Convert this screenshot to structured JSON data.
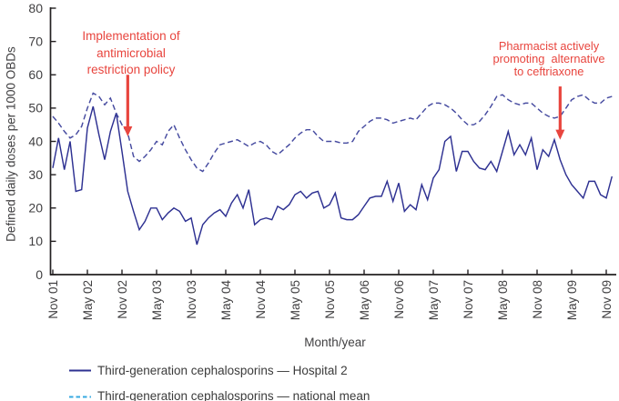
{
  "chart_data": {
    "type": "line",
    "title": "",
    "xlabel": "Month/year",
    "ylabel": "Defined daily doses per 1000 OBDs",
    "ylim": [
      0,
      80
    ],
    "y_ticks": [
      0,
      10,
      20,
      30,
      40,
      50,
      60,
      70,
      80
    ],
    "grid": "off",
    "legend_position": "bottom-left",
    "x_ticks": [
      {
        "label": "Nov 01",
        "month": 0
      },
      {
        "label": "May 02",
        "month": 6
      },
      {
        "label": "Nov 02",
        "month": 12
      },
      {
        "label": "May 03",
        "month": 18
      },
      {
        "label": "Nov 03",
        "month": 24
      },
      {
        "label": "May 04",
        "month": 30
      },
      {
        "label": "Nov 04",
        "month": 36
      },
      {
        "label": "May 05",
        "month": 42
      },
      {
        "label": "Nov 05",
        "month": 48
      },
      {
        "label": "May 06",
        "month": 54
      },
      {
        "label": "Nov 06",
        "month": 60
      },
      {
        "label": "May 07",
        "month": 66
      },
      {
        "label": "Nov 07",
        "month": 72
      },
      {
        "label": "May 08",
        "month": 78
      },
      {
        "label": "Nov 08",
        "month": 84
      },
      {
        "label": "May 09",
        "month": 90
      },
      {
        "label": "Nov 09",
        "month": 96
      }
    ],
    "x_months": [
      "Nov 01",
      "Dec 01",
      "Jan 02",
      "Feb 02",
      "Mar 02",
      "Apr 02",
      "May 02",
      "Jun 02",
      "Jul 02",
      "Aug 02",
      "Sep 02",
      "Oct 02",
      "Nov 02",
      "Dec 02",
      "Jan 03",
      "Feb 03",
      "Mar 03",
      "Apr 03",
      "May 03",
      "Jun 03",
      "Jul 03",
      "Aug 03",
      "Sep 03",
      "Oct 03",
      "Nov 03",
      "Dec 03",
      "Jan 04",
      "Feb 04",
      "Mar 04",
      "Apr 04",
      "May 04",
      "Jun 04",
      "Jul 04",
      "Aug 04",
      "Sep 04",
      "Oct 04",
      "Nov 04",
      "Dec 04",
      "Jan 05",
      "Feb 05",
      "Mar 05",
      "Apr 05",
      "May 05",
      "Jun 05",
      "Jul 05",
      "Aug 05",
      "Sep 05",
      "Oct 05",
      "Nov 05",
      "Dec 05",
      "Jan 06",
      "Feb 06",
      "Mar 06",
      "Apr 06",
      "May 06",
      "Jun 06",
      "Jul 06",
      "Aug 06",
      "Sep 06",
      "Oct 06",
      "Nov 06",
      "Dec 06",
      "Jan 07",
      "Feb 07",
      "Mar 07",
      "Apr 07",
      "May 07",
      "Jun 07",
      "Jul 07",
      "Aug 07",
      "Sep 07",
      "Oct 07",
      "Nov 07",
      "Dec 07",
      "Jan 08",
      "Feb 08",
      "Mar 08",
      "Apr 08",
      "May 08",
      "Jun 08",
      "Jul 08",
      "Aug 08",
      "Sep 08",
      "Oct 08",
      "Nov 08",
      "Dec 08",
      "Jan 09",
      "Feb 09",
      "Mar 09",
      "Apr 09",
      "May 09",
      "Jun 09",
      "Jul 09",
      "Aug 09",
      "Sep 09",
      "Oct 09",
      "Nov 09",
      "Dec 09"
    ],
    "series": [
      {
        "name": "Third-generation cephalosporins — Hospital 2",
        "style": "solid",
        "color": "#2e3192",
        "values": [
          32,
          41,
          31.5,
          40,
          25,
          25.5,
          44,
          50.5,
          42,
          34.5,
          43,
          48.5,
          37,
          25,
          19,
          13.5,
          16,
          20,
          20,
          16.5,
          18.5,
          20,
          19,
          16,
          17,
          9,
          15,
          17,
          18.5,
          19.5,
          17.5,
          21.5,
          24,
          20,
          25.5,
          15,
          16.5,
          17,
          16.5,
          20.5,
          19.5,
          21,
          24,
          25,
          23,
          24.5,
          25,
          20,
          21,
          24.5,
          17,
          16.5,
          16.5,
          18,
          20.5,
          23,
          23.5,
          23.5,
          28,
          22,
          27.5,
          19,
          21,
          19.5,
          27,
          22.5,
          29,
          31.5,
          40,
          41.5,
          31,
          37,
          37,
          34,
          32,
          31.5,
          34,
          31,
          37,
          43,
          36,
          39,
          36,
          41,
          31.5,
          37.5,
          35.5,
          40.5,
          34.5,
          30,
          27,
          25,
          23,
          28,
          28,
          24,
          23,
          29.5
        ]
      },
      {
        "name": "Third-generation cephalosporins — national mean",
        "style": "dashed",
        "color": "#464ba0",
        "legend_color": "#36a9e1",
        "values": [
          47.5,
          45.5,
          43,
          41,
          42,
          44.5,
          50,
          54.5,
          53.5,
          51,
          53,
          48.5,
          45,
          42.5,
          35.5,
          34,
          35.5,
          37.5,
          40,
          39,
          43,
          45,
          41,
          37.5,
          34.5,
          32,
          31,
          33.5,
          36.5,
          39,
          39.5,
          40,
          40.5,
          39.5,
          38.5,
          39.5,
          40,
          39,
          37,
          36,
          37.5,
          39,
          41,
          42.5,
          43.5,
          43.5,
          41.5,
          40,
          40,
          40,
          39.5,
          39.5,
          40,
          43,
          44.5,
          46,
          47,
          47,
          46.5,
          45.5,
          46,
          46.5,
          47,
          46.5,
          48.5,
          50.5,
          51.5,
          51.5,
          51,
          50,
          48.5,
          46.5,
          45,
          45,
          46,
          48,
          50.5,
          53.5,
          54,
          52.5,
          51.5,
          51,
          51.5,
          51.5,
          50,
          48.5,
          47.5,
          47,
          47.5,
          50,
          52.5,
          53.5,
          54,
          52.5,
          51.5,
          51.5,
          53,
          53.5
        ]
      }
    ],
    "annotations": [
      {
        "lines": [
          "Implementation of",
          "antimicrobial",
          "restriction policy"
        ],
        "color": "#e8453e",
        "arrow": {
          "x_month": 13,
          "y_from": 60,
          "y_to": 41.5
        }
      },
      {
        "lines": [
          "Pharmacist actively",
          "promoting  alternative",
          "to ceftriaxone"
        ],
        "color": "#e8453e",
        "arrow": {
          "x_month": 88,
          "y_from": 56.5,
          "y_to": 40.5
        }
      }
    ]
  },
  "legend": {
    "items": [
      {
        "label": "Third-generation cephalosporins — Hospital 2"
      },
      {
        "label": "Third-generation cephalosporins — national mean"
      }
    ]
  }
}
